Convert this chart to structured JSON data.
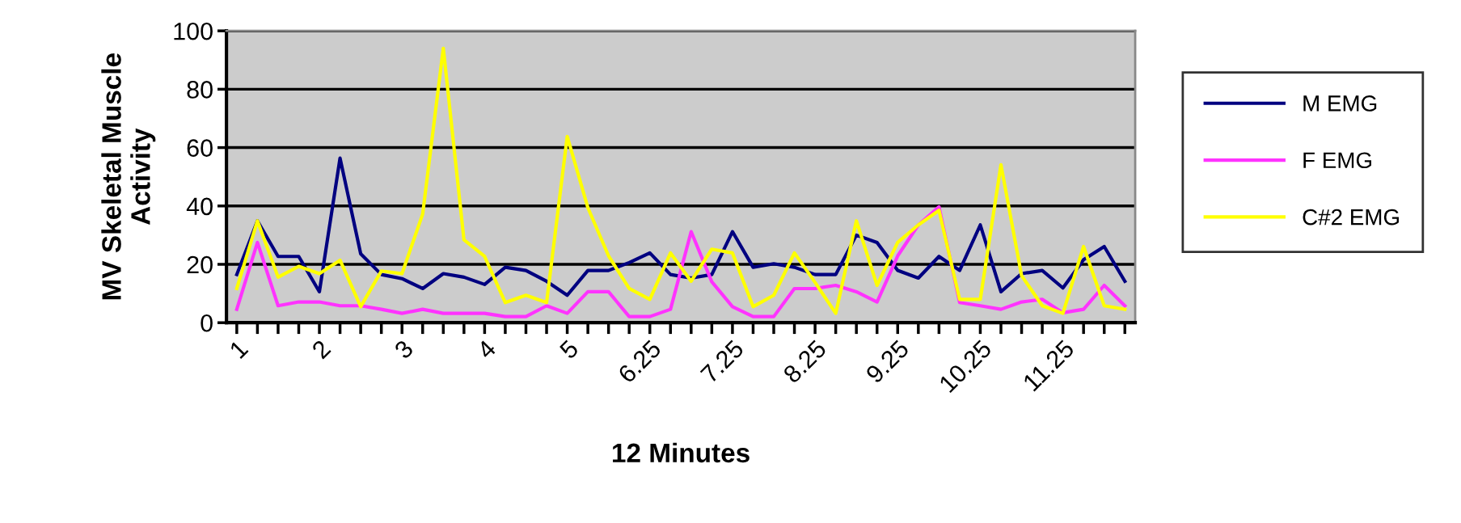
{
  "chart_data": {
    "type": "line",
    "xlabel": "12 Minutes",
    "ylabel": "MV Skeletal Muscle\nActivity",
    "categories": [
      "1",
      null,
      null,
      null,
      "2",
      null,
      null,
      null,
      "3",
      null,
      null,
      null,
      "4",
      null,
      null,
      null,
      "5",
      null,
      null,
      null,
      "6.25",
      null,
      null,
      null,
      "7.25",
      null,
      null,
      null,
      "8.25",
      null,
      null,
      null,
      "9.25",
      null,
      null,
      null,
      "10.25",
      null,
      null,
      null,
      "11.25",
      null,
      null,
      null
    ],
    "series": [
      {
        "name": "M EMG",
        "color": "#000080",
        "values": [
          16.5,
          34.9,
          22.7,
          22.7,
          10.6,
          56.4,
          23.6,
          16.5,
          15.1,
          11.7,
          16.8,
          15.6,
          13.1,
          19.0,
          17.9,
          14.2,
          9.4,
          17.9,
          17.9,
          20.6,
          23.9,
          16.5,
          15.3,
          16.5,
          31.2,
          19.0,
          20.2,
          19.0,
          16.5,
          16.5,
          30.0,
          27.5,
          17.9,
          15.3,
          22.7,
          17.9,
          33.5,
          10.6,
          16.8,
          17.9,
          11.9,
          21.6,
          26.1,
          14.2
        ]
      },
      {
        "name": "F EMG",
        "color": "#ff33ff",
        "values": [
          4.6,
          27.5,
          5.8,
          7.1,
          7.1,
          5.8,
          5.8,
          4.6,
          3.2,
          4.6,
          3.2,
          3.2,
          3.2,
          2.1,
          2.1,
          5.8,
          3.2,
          10.6,
          10.6,
          2.1,
          2.1,
          4.6,
          31.2,
          14.0,
          5.5,
          2.1,
          2.1,
          11.7,
          11.7,
          12.8,
          10.6,
          7.1,
          22.9,
          33.5,
          39.7,
          6.9,
          5.8,
          4.6,
          7.1,
          8.0,
          3.4,
          4.6,
          12.8,
          5.8
        ]
      },
      {
        "name": "C#2 EMG",
        "color": "#ffff00",
        "values": [
          11.7,
          34.9,
          15.6,
          19.3,
          16.8,
          21.4,
          5.5,
          17.7,
          16.8,
          37.2,
          94.0,
          28.4,
          22.7,
          6.9,
          9.4,
          6.9,
          63.8,
          39.4,
          22.9,
          11.7,
          8.0,
          23.9,
          14.2,
          25.2,
          23.9,
          5.5,
          9.4,
          23.9,
          13.8,
          3.2,
          34.9,
          12.8,
          27.5,
          33.5,
          38.5,
          8.0,
          8.0,
          54.1,
          16.1,
          5.8,
          3.2,
          26.1,
          5.8,
          4.6
        ]
      }
    ],
    "ylim": [
      0,
      100
    ],
    "yticks": [
      0,
      20,
      40,
      60,
      80,
      100
    ],
    "grid": "y",
    "legend": "right",
    "marker": "none",
    "line_style": "solid"
  }
}
